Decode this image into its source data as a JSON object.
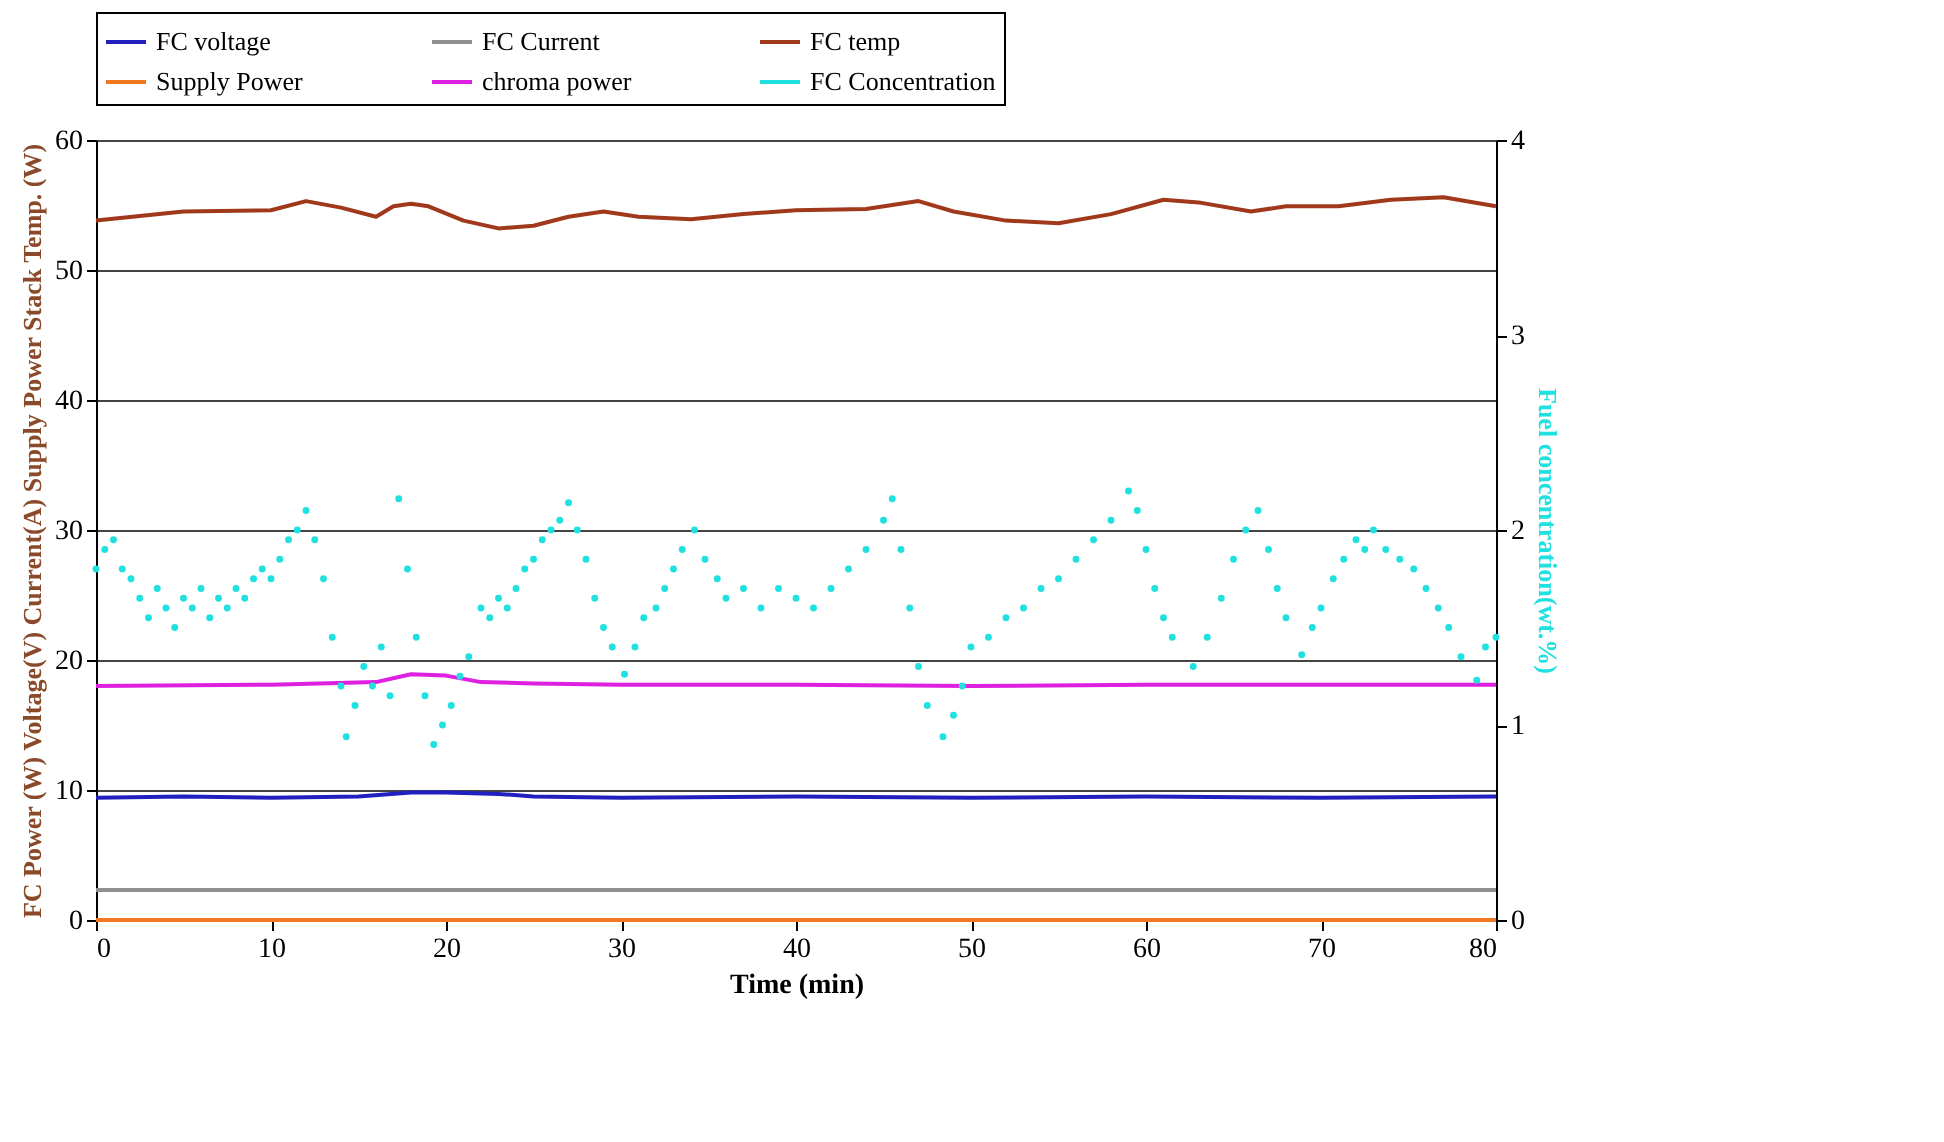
{
  "chart_data": {
    "type": "line",
    "xlabel": "Time (min)",
    "ylabel": "FC Power (W) Voltage(V) Current(A) Supply Power Stack Temp. (W)",
    "y2label": "Fuel concentration(wt.%)",
    "xlim": [
      0,
      80
    ],
    "xticks": [
      0,
      10,
      20,
      30,
      40,
      50,
      60,
      70,
      80
    ],
    "ylim": [
      0,
      60
    ],
    "yticks": [
      0,
      10,
      20,
      30,
      40,
      50,
      60
    ],
    "y2lim": [
      0,
      4
    ],
    "y2ticks": [
      0,
      1,
      2,
      3,
      4
    ],
    "grid": "y",
    "legend": "top",
    "series": [
      {
        "name": "FC voltage",
        "color": "#2020c0",
        "x": [
          0,
          5,
          10,
          15,
          18,
          20,
          23,
          25,
          30,
          40,
          50,
          60,
          70,
          80
        ],
        "values": [
          9.4,
          9.5,
          9.4,
          9.5,
          9.8,
          9.8,
          9.7,
          9.5,
          9.4,
          9.5,
          9.4,
          9.5,
          9.4,
          9.5
        ]
      },
      {
        "name": "FC Current",
        "color": "#909090",
        "x": [
          0,
          20,
          40,
          60,
          80
        ],
        "values": [
          2.3,
          2.3,
          2.3,
          2.3,
          2.3
        ]
      },
      {
        "name": "FC temp",
        "color": "#a0391c",
        "x": [
          0,
          5,
          10,
          12,
          14,
          16,
          17,
          18,
          19,
          21,
          23,
          25,
          27,
          29,
          31,
          34,
          37,
          40,
          44,
          47,
          49,
          52,
          55,
          58,
          61,
          63,
          66,
          68,
          71,
          74,
          77,
          80
        ],
        "values": [
          53.8,
          54.5,
          54.6,
          55.3,
          54.8,
          54.1,
          54.9,
          55.1,
          54.9,
          53.8,
          53.2,
          53.4,
          54.1,
          54.5,
          54.1,
          53.9,
          54.3,
          54.6,
          54.7,
          55.3,
          54.5,
          53.8,
          53.6,
          54.3,
          55.4,
          55.2,
          54.5,
          54.9,
          54.9,
          55.4,
          55.6,
          54.9
        ]
      },
      {
        "name": "Supply Power",
        "color": "#f07820",
        "x": [
          0,
          80
        ],
        "values": [
          0,
          0
        ]
      },
      {
        "name": "chroma power",
        "color": "#e020e0",
        "x": [
          0,
          10,
          16,
          18,
          20,
          22,
          25,
          30,
          40,
          50,
          60,
          70,
          80
        ],
        "values": [
          18.0,
          18.1,
          18.3,
          18.9,
          18.8,
          18.3,
          18.2,
          18.1,
          18.1,
          18.0,
          18.1,
          18.1,
          18.1
        ]
      },
      {
        "name": "FC Concentration",
        "color": "#20e0e0",
        "type": "scatter",
        "axis": "y2",
        "x": [
          0,
          0.5,
          1,
          1.5,
          2,
          2.5,
          3,
          3.5,
          4,
          4.5,
          5,
          5.5,
          6,
          6.5,
          7,
          7.5,
          8,
          8.5,
          9,
          9.5,
          10,
          10.5,
          11,
          11.5,
          12,
          12.5,
          13,
          13.5,
          14,
          14.3,
          14.8,
          15.3,
          15.8,
          16.3,
          16.8,
          17.3,
          17.8,
          18.3,
          18.8,
          19.3,
          19.8,
          20.3,
          20.8,
          21.3,
          22,
          22.5,
          23,
          23.5,
          24,
          24.5,
          25,
          25.5,
          26,
          26.5,
          27,
          27.5,
          28,
          28.5,
          29,
          29.5,
          30.2,
          30.8,
          31.3,
          32,
          32.5,
          33,
          33.5,
          34.2,
          34.8,
          35.5,
          36,
          37,
          38,
          39,
          40,
          41,
          42,
          43,
          44,
          45,
          45.5,
          46,
          46.5,
          47,
          47.5,
          48.4,
          49,
          49.5,
          50,
          51,
          52,
          53,
          54,
          55,
          56,
          57,
          58,
          59,
          59.5,
          60,
          60.5,
          61,
          61.5,
          62.7,
          63.5,
          64.3,
          65,
          65.7,
          66.4,
          67,
          67.5,
          68,
          68.9,
          69.5,
          70,
          70.7,
          71.3,
          72,
          72.5,
          73,
          73.7,
          74.5,
          75.3,
          76,
          76.7,
          77.3,
          78,
          78.9,
          79.4,
          80
        ],
        "values": [
          1.8,
          1.9,
          1.95,
          1.8,
          1.75,
          1.65,
          1.55,
          1.7,
          1.6,
          1.5,
          1.65,
          1.6,
          1.7,
          1.55,
          1.65,
          1.6,
          1.7,
          1.65,
          1.75,
          1.8,
          1.75,
          1.85,
          1.95,
          2.0,
          2.1,
          1.95,
          1.75,
          1.45,
          1.2,
          0.94,
          1.1,
          1.3,
          1.2,
          1.4,
          1.15,
          2.16,
          1.8,
          1.45,
          1.15,
          0.9,
          1.0,
          1.1,
          1.25,
          1.35,
          1.6,
          1.55,
          1.65,
          1.6,
          1.7,
          1.8,
          1.85,
          1.95,
          2.0,
          2.05,
          2.14,
          2.0,
          1.85,
          1.65,
          1.5,
          1.4,
          1.26,
          1.4,
          1.55,
          1.6,
          1.7,
          1.8,
          1.9,
          2.0,
          1.85,
          1.75,
          1.65,
          1.7,
          1.6,
          1.7,
          1.65,
          1.6,
          1.7,
          1.8,
          1.9,
          2.05,
          2.16,
          1.9,
          1.6,
          1.3,
          1.1,
          0.94,
          1.05,
          1.2,
          1.4,
          1.45,
          1.55,
          1.6,
          1.7,
          1.75,
          1.85,
          1.95,
          2.05,
          2.2,
          2.1,
          1.9,
          1.7,
          1.55,
          1.45,
          1.3,
          1.45,
          1.65,
          1.85,
          2.0,
          2.1,
          1.9,
          1.7,
          1.55,
          1.36,
          1.5,
          1.6,
          1.75,
          1.85,
          1.95,
          1.9,
          2.0,
          1.9,
          1.85,
          1.8,
          1.7,
          1.6,
          1.5,
          1.35,
          1.23,
          1.4,
          1.45
        ]
      }
    ]
  }
}
